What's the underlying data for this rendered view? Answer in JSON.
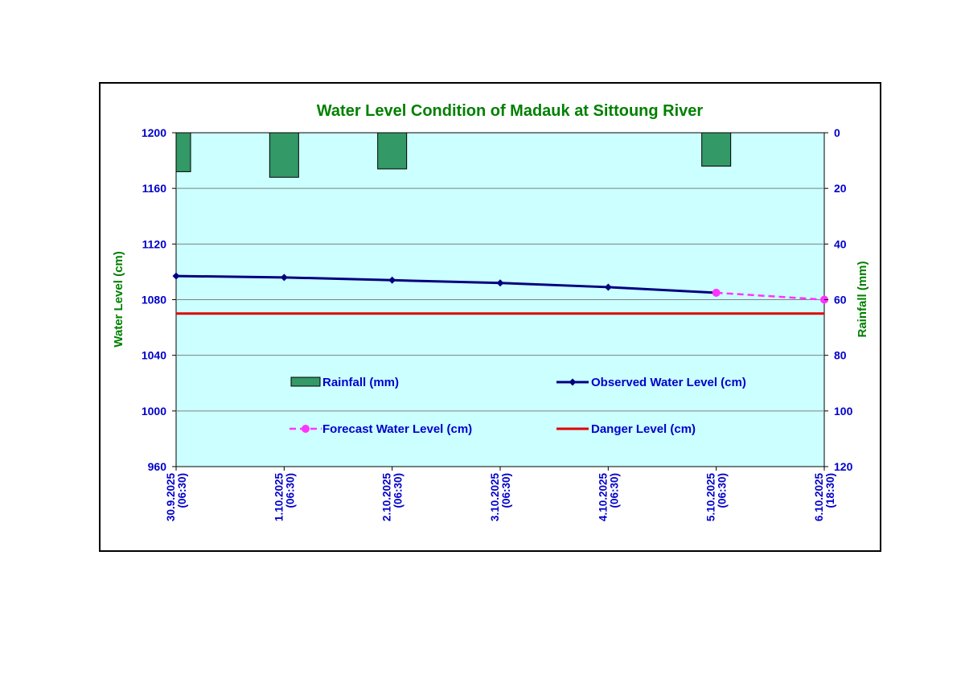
{
  "colors": {
    "title": "#008000",
    "tick_text": "#0000CC",
    "axis_label": "#008000",
    "plot_bg": "#CCFFFF",
    "gridline": "#808080",
    "rain_fill": "#339966",
    "observed": "#000080",
    "forecast": "#FF33FF",
    "danger": "#E00000",
    "legend_text": "#0000CC"
  },
  "chart_data": {
    "type": "line",
    "title": "Water Level Condition of Madauk at Sittoung River",
    "ylabel_left": "Water Level (cm)",
    "ylabel_right": "Rainfall (mm)",
    "ylim_left": [
      960,
      1200
    ],
    "yticks_left": [
      "960",
      "1000",
      "1040",
      "1080",
      "1120",
      "1160",
      "1200"
    ],
    "ylim_right": [
      0,
      120
    ],
    "right_axis_inverted": true,
    "yticks_right": [
      "0",
      "20",
      "40",
      "60",
      "80",
      "100",
      "120"
    ],
    "categories": [
      [
        "30.9.2025",
        "(06:30)"
      ],
      [
        "1.10.2025",
        "(06:30)"
      ],
      [
        "2.10.2025",
        "(06:30)"
      ],
      [
        "3.10.2025",
        "(06:30)"
      ],
      [
        "4.10.2025",
        "(06:30)"
      ],
      [
        "5.10.2025",
        "(06:30)"
      ],
      [
        "6.10.2025",
        "(18:30)"
      ]
    ],
    "series": [
      {
        "name": "Rainfall (mm)",
        "kind": "bar",
        "axis": "right",
        "points": [
          {
            "x": 0,
            "value": 14
          },
          {
            "x": 1,
            "value": 16
          },
          {
            "x": 2,
            "value": 13
          },
          {
            "x": 5,
            "value": 12
          }
        ]
      },
      {
        "name": "Observed Water Level (cm)",
        "kind": "line",
        "axis": "left",
        "points": [
          {
            "x": 0,
            "value": 1097
          },
          {
            "x": 1,
            "value": 1096
          },
          {
            "x": 2,
            "value": 1094
          },
          {
            "x": 3,
            "value": 1092
          },
          {
            "x": 4,
            "value": 1089
          },
          {
            "x": 5,
            "value": 1085
          }
        ]
      },
      {
        "name": "Forecast Water Level (cm)",
        "kind": "line-dashed",
        "axis": "left",
        "points": [
          {
            "x": 5,
            "value": 1085
          },
          {
            "x": 6,
            "value": 1080
          }
        ]
      },
      {
        "name": "Danger Level (cm)",
        "kind": "hline",
        "axis": "left",
        "value": 1070
      }
    ],
    "legend": {
      "placement": "inside-lower-center",
      "items": [
        "Rainfall (mm)",
        "Observed Water Level (cm)",
        "Forecast Water Level (cm)",
        "Danger Level (cm)"
      ]
    }
  }
}
